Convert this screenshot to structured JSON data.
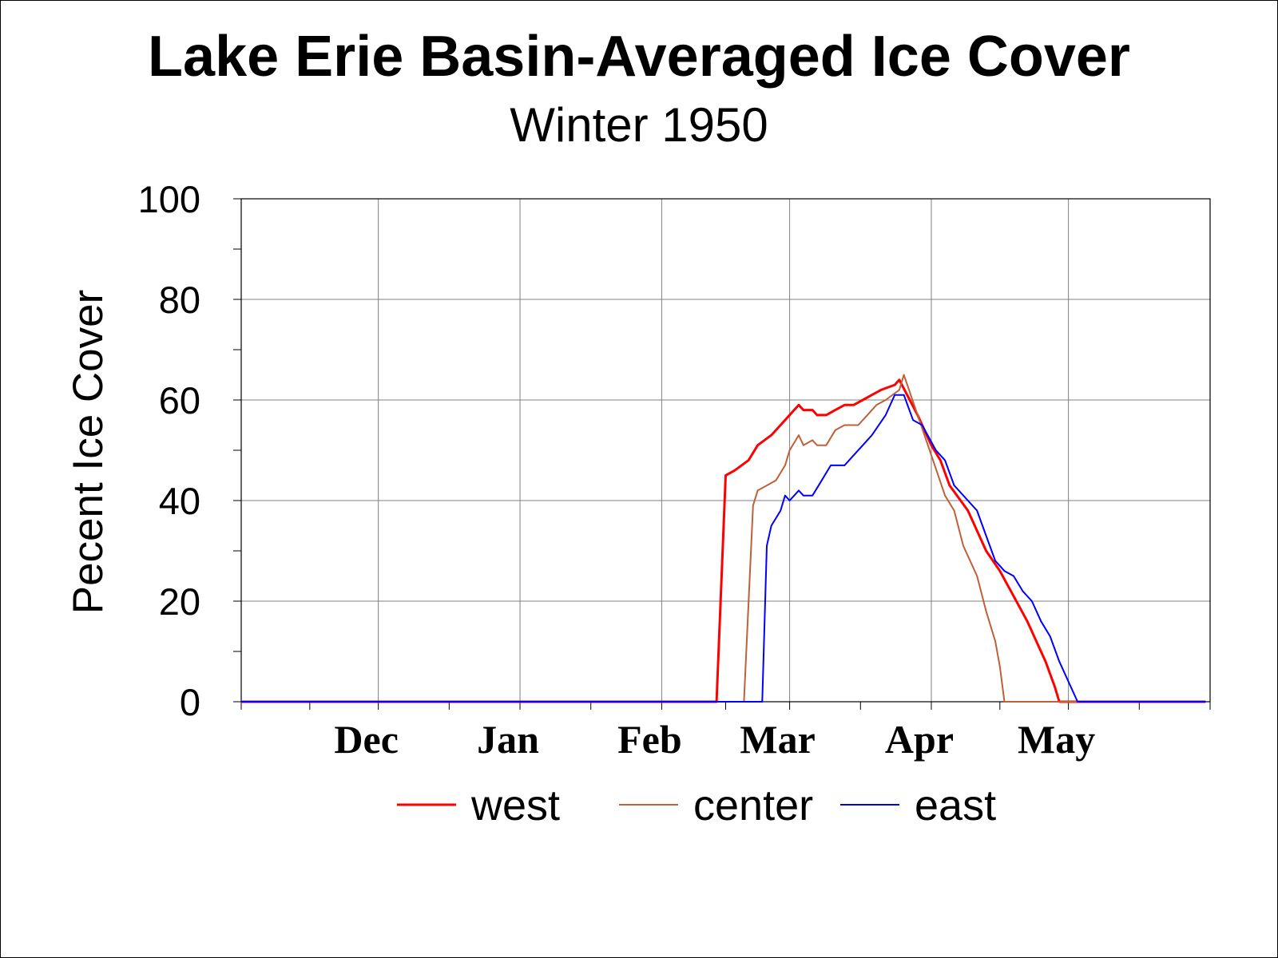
{
  "chart_data": {
    "type": "line",
    "title": "Lake Erie Basin-Averaged Ice Cover",
    "subtitle": "Winter 1950",
    "xlabel": "",
    "ylabel": "Pecent Ice Cover",
    "ylim": [
      0,
      100
    ],
    "yticks": [
      0,
      20,
      40,
      60,
      80,
      100
    ],
    "x_month_labels": [
      "Dec",
      "Jan",
      "Feb",
      "Mar",
      "Apr",
      "May"
    ],
    "xlim": [
      "1949-11-01",
      "2000-05-31"
    ],
    "grid": true,
    "legend_position": "bottom",
    "series": [
      {
        "name": "west",
        "color": "#ff0000",
        "points": [
          [
            "1949-11-01",
            0
          ],
          [
            "1950-02-13",
            0
          ],
          [
            "1950-02-15",
            45
          ],
          [
            "1950-02-17",
            46
          ],
          [
            "1950-02-20",
            48
          ],
          [
            "1950-02-22",
            51
          ],
          [
            "1950-02-25",
            53
          ],
          [
            "1950-02-27",
            55
          ],
          [
            "1950-03-01",
            57
          ],
          [
            "1950-03-03",
            59
          ],
          [
            "1950-03-04",
            58
          ],
          [
            "1950-03-06",
            58
          ],
          [
            "1950-03-07",
            57
          ],
          [
            "1950-03-09",
            57
          ],
          [
            "1950-03-11",
            58
          ],
          [
            "1950-03-13",
            59
          ],
          [
            "1950-03-15",
            59
          ],
          [
            "1950-03-17",
            60
          ],
          [
            "1950-03-19",
            61
          ],
          [
            "1950-03-21",
            62
          ],
          [
            "1950-03-24",
            63
          ],
          [
            "1950-03-25",
            64
          ],
          [
            "1950-03-29",
            57
          ],
          [
            "1950-04-01",
            51
          ],
          [
            "1950-04-03",
            48
          ],
          [
            "1950-04-05",
            43
          ],
          [
            "1950-04-09",
            38
          ],
          [
            "1950-04-13",
            30
          ],
          [
            "1950-04-16",
            26
          ],
          [
            "1950-04-19",
            21
          ],
          [
            "1950-04-22",
            16
          ],
          [
            "1950-04-26",
            8
          ],
          [
            "1950-04-28",
            3
          ],
          [
            "1950-04-29",
            0
          ],
          [
            "1950-05-31",
            0
          ]
        ]
      },
      {
        "name": "center",
        "color": "#c0603a",
        "points": [
          [
            "1949-11-01",
            0
          ],
          [
            "1950-02-19",
            0
          ],
          [
            "1950-02-21",
            39
          ],
          [
            "1950-02-22",
            42
          ],
          [
            "1950-02-24",
            43
          ],
          [
            "1950-02-26",
            44
          ],
          [
            "1950-02-28",
            47
          ],
          [
            "1950-03-01",
            50
          ],
          [
            "1950-03-03",
            53
          ],
          [
            "1950-03-04",
            51
          ],
          [
            "1950-03-06",
            52
          ],
          [
            "1950-03-07",
            51
          ],
          [
            "1950-03-09",
            51
          ],
          [
            "1950-03-11",
            54
          ],
          [
            "1950-03-13",
            55
          ],
          [
            "1950-03-16",
            55
          ],
          [
            "1950-03-18",
            57
          ],
          [
            "1950-03-20",
            59
          ],
          [
            "1950-03-22",
            60
          ],
          [
            "1950-03-25",
            62
          ],
          [
            "1950-03-26",
            65
          ],
          [
            "1950-03-29",
            57
          ],
          [
            "1950-04-01",
            49
          ],
          [
            "1950-04-04",
            41
          ],
          [
            "1950-04-06",
            38
          ],
          [
            "1950-04-08",
            31
          ],
          [
            "1950-04-11",
            25
          ],
          [
            "1950-04-13",
            18
          ],
          [
            "1950-04-15",
            12
          ],
          [
            "1950-04-16",
            7
          ],
          [
            "1950-04-17",
            0
          ],
          [
            "1950-05-31",
            0
          ]
        ]
      },
      {
        "name": "east",
        "color": "#0000ff",
        "points": [
          [
            "1949-11-01",
            0
          ],
          [
            "1950-02-23",
            0
          ],
          [
            "1950-02-24",
            31
          ],
          [
            "1950-02-25",
            35
          ],
          [
            "1950-02-27",
            38
          ],
          [
            "1950-02-28",
            41
          ],
          [
            "1950-03-01",
            40
          ],
          [
            "1950-03-03",
            42
          ],
          [
            "1950-03-04",
            41
          ],
          [
            "1950-03-06",
            41
          ],
          [
            "1950-03-08",
            44
          ],
          [
            "1950-03-10",
            47
          ],
          [
            "1950-03-13",
            47
          ],
          [
            "1950-03-15",
            49
          ],
          [
            "1950-03-17",
            51
          ],
          [
            "1950-03-19",
            53
          ],
          [
            "1950-03-22",
            57
          ],
          [
            "1950-03-24",
            61
          ],
          [
            "1950-03-26",
            61
          ],
          [
            "1950-03-28",
            56
          ],
          [
            "1950-03-30",
            55
          ],
          [
            "1950-04-02",
            50
          ],
          [
            "1950-04-04",
            48
          ],
          [
            "1950-04-06",
            43
          ],
          [
            "1950-04-09",
            40
          ],
          [
            "1950-04-11",
            38
          ],
          [
            "1950-04-13",
            33
          ],
          [
            "1950-04-15",
            28
          ],
          [
            "1950-04-17",
            26
          ],
          [
            "1950-04-19",
            25
          ],
          [
            "1950-04-21",
            22
          ],
          [
            "1950-04-23",
            20
          ],
          [
            "1950-04-25",
            16
          ],
          [
            "1950-04-27",
            13
          ],
          [
            "1950-04-29",
            8
          ],
          [
            "1950-05-03",
            0
          ],
          [
            "1950-05-31",
            0
          ]
        ]
      }
    ]
  }
}
